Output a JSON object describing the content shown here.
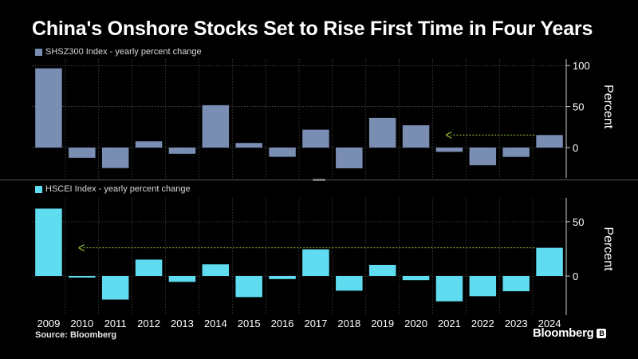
{
  "chart_data": {
    "type": "bar",
    "title": "China's Onshore Stocks Set to Rise First Time in Four Years",
    "categories": [
      "2009",
      "2010",
      "2011",
      "2012",
      "2013",
      "2014",
      "2015",
      "2016",
      "2017",
      "2018",
      "2019",
      "2020",
      "2021",
      "2022",
      "2023",
      "2024"
    ],
    "panels": [
      {
        "legend": "SHSZ300 Index - yearly percent change",
        "color": "#7a8db3",
        "values": [
          96.7,
          -12.5,
          -25.0,
          7.6,
          -7.6,
          51.7,
          5.6,
          -11.3,
          21.8,
          -25.3,
          36.1,
          27.2,
          -5.2,
          -21.6,
          -11.4,
          15.3
        ],
        "ylim": [
          -37,
          108
        ],
        "yticks": [
          0,
          50,
          100
        ],
        "ylabel": "Percent",
        "annotation": "arrow from 2024 back to 2021 at current level"
      },
      {
        "legend": "HSCEI Index - yearly percent change",
        "color": "#5fdcf0",
        "values": [
          62.1,
          -1.4,
          -21.7,
          15.1,
          -5.4,
          10.8,
          -19.4,
          -2.8,
          24.6,
          -13.5,
          10.3,
          -3.8,
          -23.3,
          -18.6,
          -14.0,
          26.0
        ],
        "ylim": [
          -36,
          72
        ],
        "yticks": [
          0,
          50
        ],
        "ylabel": "Percent",
        "annotation": "arrow from 2024 back to 2010 at current level"
      }
    ],
    "xlabel": "",
    "grid": true
  },
  "footer": {
    "source": "Source: Bloomberg",
    "brand": "Bloomberg",
    "brand_logo": "B"
  },
  "colors": {
    "background": "#000000",
    "grid": "#5a5a5a",
    "arrow": "#9acd32"
  }
}
